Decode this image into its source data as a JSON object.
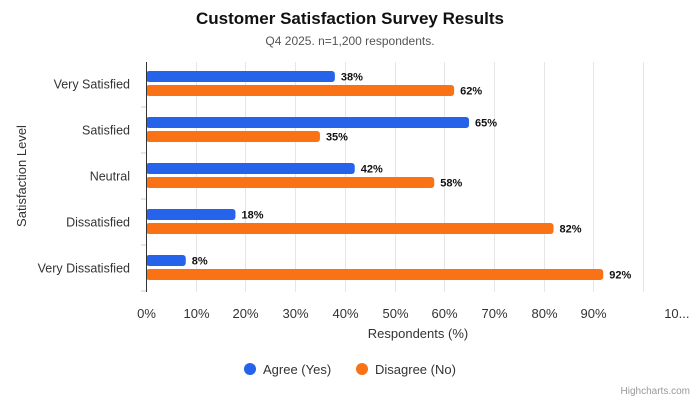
{
  "chart_data": {
    "type": "bar",
    "orientation": "horizontal",
    "title": "Customer Satisfaction Survey Results",
    "subtitle": "Q4 2025. n=1,200 respondents.",
    "xlabel": "Respondents (%)",
    "ylabel": "Satisfaction Level",
    "categories": [
      "Very Satisfied",
      "Satisfied",
      "Neutral",
      "Dissatisfied",
      "Very Dissatisfied"
    ],
    "series": [
      {
        "name": "Agree (Yes)",
        "color": "#2563eb",
        "values": [
          38,
          65,
          42,
          18,
          8
        ]
      },
      {
        "name": "Disagree (No)",
        "color": "#f97316",
        "values": [
          62,
          35,
          58,
          82,
          92
        ]
      }
    ],
    "xlim": [
      0,
      100
    ],
    "ticks": [
      "0%",
      "10%",
      "20%",
      "30%",
      "40%",
      "50%",
      "60%",
      "70%",
      "80%",
      "90%",
      "10..."
    ],
    "data_label_suffix": "%",
    "grid": true,
    "legend_position": "bottom",
    "credits": "Highcharts.com"
  }
}
